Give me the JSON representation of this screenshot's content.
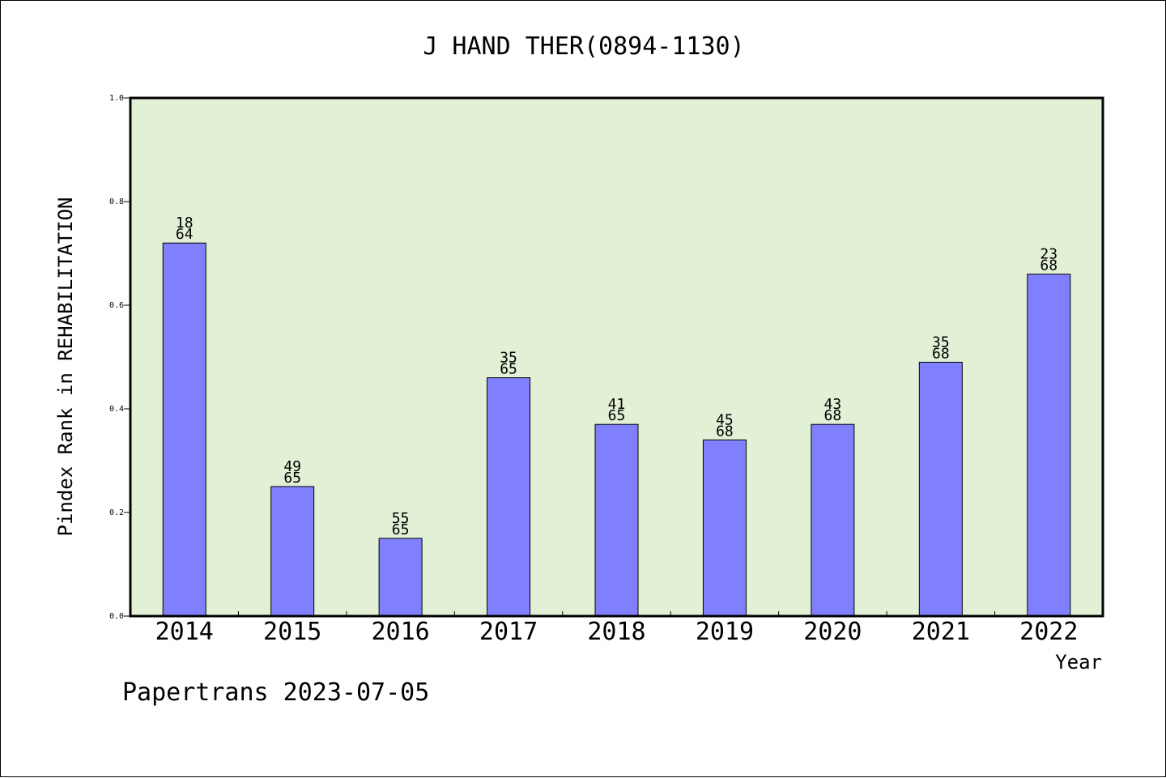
{
  "chart_data": {
    "type": "bar",
    "title": "J HAND THER(0894-1130)",
    "xlabel": "Year",
    "ylabel": "Pindex Rank in REHABILITATION",
    "footer": "Papertrans 2023-07-05",
    "categories": [
      "2014",
      "2015",
      "2016",
      "2017",
      "2018",
      "2019",
      "2020",
      "2021",
      "2022"
    ],
    "values": [
      0.72,
      0.25,
      0.15,
      0.46,
      0.37,
      0.34,
      0.37,
      0.49,
      0.66
    ],
    "labels_top": [
      "18",
      "49",
      "55",
      "35",
      "41",
      "45",
      "43",
      "35",
      "23"
    ],
    "labels_bottom": [
      "64",
      "65",
      "65",
      "65",
      "65",
      "68",
      "68",
      "68",
      "68"
    ],
    "ylim": [
      0,
      1.0
    ],
    "yticks": [
      "0.0",
      "0.2",
      "0.4",
      "0.6",
      "0.8",
      "1.0"
    ],
    "grid": false,
    "colors": {
      "bar": "#8080ff",
      "plot_bg": "#e2f0d6",
      "axis": "#000000"
    }
  }
}
